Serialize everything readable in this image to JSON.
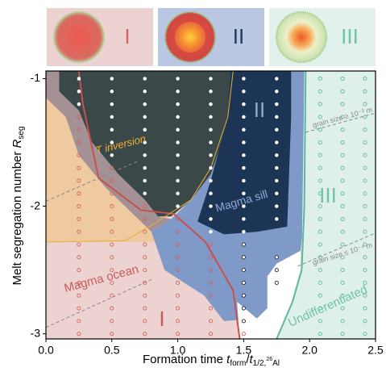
{
  "chart_data": {
    "type": "regime-map",
    "x_label": [
      {
        "text": "Formation time "
      },
      {
        "text": "t",
        "style": "italic"
      },
      {
        "text": "form",
        "style": "sub"
      },
      {
        "text": "/"
      },
      {
        "text": "t",
        "style": "italic"
      },
      {
        "text": "1/2,",
        "style": "sub"
      },
      {
        "text": "26",
        "style": "subsup"
      },
      {
        "text": "Al",
        "style": "sub"
      }
    ],
    "y_label": [
      {
        "text": "Melt segregation number "
      },
      {
        "text": "R",
        "style": "italic"
      },
      {
        "text": "seg",
        "style": "sub"
      }
    ],
    "xlim": [
      0,
      2.5
    ],
    "ylim": [
      -3.04,
      -0.94
    ],
    "xticks": [
      {
        "value": 0,
        "label": "0.0"
      },
      0.5,
      {
        "value": 1,
        "label": "1.0"
      },
      1.5,
      {
        "value": 2,
        "label": "2.0"
      },
      2.5
    ],
    "yticks": [
      -1,
      -2,
      -3
    ],
    "panels": [
      {
        "label": "I",
        "color": "#ecd3d2",
        "text_color": "#d06868"
      },
      {
        "label": "II",
        "color": "#b9c7e3",
        "text_color": "#1d3a5c"
      },
      {
        "label": "III",
        "color": "#e3f1ec",
        "text_color": "#6ec3ab"
      }
    ],
    "regions": [
      {
        "color": "#efc9a0",
        "x": [
          0,
          0.3,
          0.3,
          0.55,
          0.75,
          0.9,
          0.85,
          0
        ],
        "y": [
          -0.94,
          -0.94,
          -1.5,
          -1.75,
          -1.95,
          -2.2,
          -2.28,
          -2.28
        ]
      },
      {
        "color": "#a39196",
        "x": [
          0,
          0.1,
          0.1,
          0.25,
          0.35,
          0.55,
          0.75,
          0.85,
          0.95,
          0.8,
          0.65,
          0.45,
          0.25,
          0.15,
          0
        ],
        "y": [
          -0.94,
          -0.94,
          -1.1,
          -1.25,
          -1.5,
          -1.75,
          -1.95,
          -2.08,
          -2.1,
          -2.2,
          -2.05,
          -1.85,
          -1.6,
          -1.3,
          -1.15
        ]
      },
      {
        "color": "#7f99c9",
        "x": [
          1.4,
          1.96,
          1.96,
          1.93,
          1.75,
          1.68,
          1.68,
          1.6,
          1.35,
          1.2,
          1.05,
          0.9,
          0.8,
          0.95,
          1.05,
          1.2,
          1.4
        ],
        "y": [
          -0.94,
          -0.94,
          -2.1,
          -2.35,
          -2.45,
          -2.55,
          -2.8,
          -2.88,
          -2.9,
          -2.7,
          -2.6,
          -2.5,
          -2.2,
          -2.1,
          -2.0,
          -1.8,
          -1.3
        ]
      },
      {
        "color": "#3b4849",
        "x": [
          0.1,
          1.42,
          1.4,
          1.25,
          1.1,
          0.95,
          0.85,
          0.75,
          0.55,
          0.35,
          0.25,
          0.1
        ],
        "y": [
          -0.94,
          -0.94,
          -1.3,
          -1.75,
          -1.95,
          -2.08,
          -2.08,
          -1.95,
          -1.75,
          -1.5,
          -1.25,
          -1.1
        ]
      },
      {
        "color": "#1d3554",
        "x": [
          1.4,
          1.86,
          1.86,
          1.83,
          1.6,
          1.35,
          1.15,
          1.25,
          1.38
        ],
        "y": [
          -0.94,
          -0.94,
          -1.3,
          -2.16,
          -2.2,
          -2.22,
          -2.12,
          -1.8,
          -1.3
        ]
      },
      {
        "color": "#ffffff",
        "x": [
          1.47,
          1.93,
          1.93,
          1.75,
          1.68,
          1.68,
          1.6,
          1.45
        ],
        "y": [
          -3.04,
          -3.04,
          -2.35,
          -2.45,
          -2.55,
          -2.8,
          -2.88,
          -2.75
        ]
      },
      {
        "color": "#dff0ea",
        "x": [
          1.96,
          2.5,
          2.5,
          1.75,
          1.85,
          1.94
        ],
        "y": [
          -0.94,
          -0.94,
          -3.04,
          -3.04,
          -2.8,
          -2.45
        ]
      }
    ],
    "lines": [
      {
        "color": "#c9504c",
        "width": 2,
        "x": [
          0.25,
          0.28,
          0.4,
          0.72,
          0.97,
          1.21,
          1.42,
          1.47
        ],
        "y": [
          -0.94,
          -1.2,
          -1.78,
          -2.03,
          -2.06,
          -2.28,
          -2.66,
          -3.04
        ]
      },
      {
        "color": "#e8b030",
        "width": 1,
        "x": [
          1.42,
          1.38,
          1.25,
          1.1,
          0.95,
          0.8,
          0.6,
          0
        ],
        "y": [
          -0.94,
          -1.3,
          -1.7,
          -1.95,
          -2.05,
          -2.15,
          -2.27,
          -2.28
        ]
      },
      {
        "color": "#5cb89e",
        "width": 2,
        "x": [
          1.97,
          1.96,
          1.94,
          1.87,
          1.75
        ],
        "y": [
          -0.94,
          -2.0,
          -2.5,
          -2.75,
          -3.04
        ]
      },
      {
        "color": "#8a8a8a",
        "width": 1,
        "dash": "4 3",
        "x": [
          0,
          0.69
        ],
        "y": [
          -1.96,
          -1.65
        ]
      },
      {
        "color": "#8a8a8a",
        "width": 1,
        "dash": "4 3",
        "x": [
          0,
          0.81
        ],
        "y": [
          -2.95,
          -2.57
        ]
      },
      {
        "color": "#8a8a8a",
        "width": 1,
        "dash": "4 3",
        "x": [
          1.97,
          2.5
        ],
        "y": [
          -1.42,
          -1.27
        ]
      },
      {
        "color": "#8a8a8a",
        "width": 1,
        "dash": "4 3",
        "x": [
          1.91,
          2.5
        ],
        "y": [
          -2.47,
          -2.21
        ]
      }
    ],
    "dot_styles": {
      "white": {
        "fill": "#ffffff",
        "stroke": "#ffffff"
      },
      "red": {
        "fill": "none",
        "stroke": "#d4605e"
      },
      "black": {
        "fill": "#ffffff",
        "stroke": "#222222"
      },
      "green": {
        "fill": "none",
        "stroke": "#5fb8a0"
      }
    },
    "dots": [
      {
        "style": "white",
        "x": 0.25,
        "values": [
          -1,
          -1.1,
          -1.2
        ]
      },
      {
        "style": "red",
        "x": 0.25,
        "values": [
          -1.3,
          -1.4,
          -1.5,
          -1.6,
          -1.7,
          -1.8,
          -1.9,
          -2,
          -2.1,
          -2.2,
          -2.3,
          -2.4,
          -2.5,
          -2.6,
          -2.7,
          -2.8,
          -2.9,
          -3
        ]
      },
      {
        "style": "white",
        "x": 0.5,
        "values": [
          -1,
          -1.1,
          -1.2,
          -1.3,
          -1.4,
          -1.5,
          -1.6
        ]
      },
      {
        "style": "red",
        "x": 0.5,
        "values": [
          -1.7,
          -1.8,
          -1.9,
          -2,
          -2.1,
          -2.2,
          -2.3,
          -2.4,
          -2.5,
          -2.6,
          -2.7,
          -2.8,
          -2.9,
          -3
        ]
      },
      {
        "style": "white",
        "x": 0.75,
        "values": [
          -1,
          -1.1,
          -1.2,
          -1.3,
          -1.4,
          -1.5,
          -1.6,
          -1.7,
          -1.8,
          -1.9
        ]
      },
      {
        "style": "red",
        "x": 0.75,
        "values": [
          -2,
          -2.1,
          -2.2,
          -2.3,
          -2.4,
          -2.5,
          -2.6,
          -2.7,
          -2.8,
          -2.9,
          -3
        ]
      },
      {
        "style": "white",
        "x": 1,
        "values": [
          -1,
          -1.1,
          -1.2,
          -1.3,
          -1.4,
          -1.5,
          -1.6,
          -1.7,
          -1.8,
          -1.9,
          -2
        ]
      },
      {
        "style": "red",
        "x": 1,
        "values": [
          -2.1,
          -2.2,
          -2.3,
          -2.4,
          -2.5,
          -2.6,
          -2.7,
          -2.8,
          -2.9,
          -3
        ]
      },
      {
        "style": "white",
        "x": 1.25,
        "values": [
          -1,
          -1.1,
          -1.2,
          -1.3,
          -1.4,
          -1.5,
          -1.6,
          -1.7,
          -1.8,
          -1.9,
          -2,
          -2.1,
          -2.2
        ]
      },
      {
        "style": "red",
        "x": 1.25,
        "values": [
          -2.3,
          -2.4,
          -2.5,
          -2.6,
          -2.7,
          -2.8,
          -2.9,
          -3
        ]
      },
      {
        "style": "white",
        "x": 1.5,
        "values": [
          -1,
          -1.1,
          -1.2,
          -1.3,
          -1.4,
          -1.5,
          -1.6,
          -1.7,
          -1.8,
          -1.9,
          -2,
          -2.1,
          -2.2
        ]
      },
      {
        "style": "black",
        "x": 1.5,
        "values": [
          -2.3,
          -2.4,
          -2.5,
          -2.6,
          -2.7,
          -2.8,
          -2.9
        ]
      },
      {
        "style": "red",
        "x": 1.5,
        "values": [
          -3
        ]
      },
      {
        "style": "white",
        "x": 1.75,
        "values": [
          -1,
          -1.1,
          -1.2,
          -1.3,
          -1.4,
          -1.5,
          -1.6,
          -1.7,
          -1.8,
          -1.9,
          -2,
          -2.1
        ]
      },
      {
        "style": "black",
        "x": 1.75,
        "values": [
          -2.4,
          -2.5,
          -2.6
        ]
      },
      {
        "style": "green",
        "x": 2.08,
        "values": [
          -1,
          -1.1,
          -1.2,
          -1.3,
          -1.4,
          -1.5,
          -1.6,
          -1.7,
          -1.8,
          -1.9,
          -2,
          -2.1,
          -2.2,
          -2.3,
          -2.4,
          -2.5,
          -2.6,
          -2.7,
          -2.8,
          -2.9,
          -3
        ]
      },
      {
        "style": "green",
        "x": 2.25,
        "values": [
          -1,
          -1.1,
          -1.2,
          -1.3,
          -1.4,
          -1.5,
          -1.6,
          -1.7,
          -1.8,
          -1.9,
          -2,
          -2.1,
          -2.2,
          -2.3,
          -2.4,
          -2.5,
          -2.6,
          -2.7,
          -2.8,
          -2.9,
          -3
        ]
      },
      {
        "style": "green",
        "x": 2.42,
        "values": [
          -1,
          -1.1,
          -1.2,
          -1.3,
          -1.4,
          -1.5,
          -1.6,
          -1.7,
          -1.8,
          -1.9,
          -2,
          -2.1,
          -2.2,
          -2.3,
          -2.4,
          -2.5,
          -2.6,
          -2.7,
          -2.8,
          -2.9,
          -3
        ]
      }
    ],
    "annotations": [
      {
        "text": "T inversion",
        "color": "#f0b030"
      },
      {
        "text": "Magma sill",
        "color": "#8ea9d8"
      },
      {
        "text": "II",
        "color": "#93a8cc"
      },
      {
        "text": "III",
        "color": "#6ec3ab"
      },
      {
        "text": "I",
        "color": "#c85a5a"
      },
      {
        "text": "Magma ocean",
        "color": "#c85a5a"
      },
      {
        "text": "Undifferentiated",
        "color": "#6ec3ab"
      },
      {
        "text": "grain size ≥ 10⁻³ m",
        "color": "#8a8a8a"
      },
      {
        "text": "grain size ≤ 10⁻⁴ m",
        "color": "#8a8a8a"
      }
    ]
  }
}
